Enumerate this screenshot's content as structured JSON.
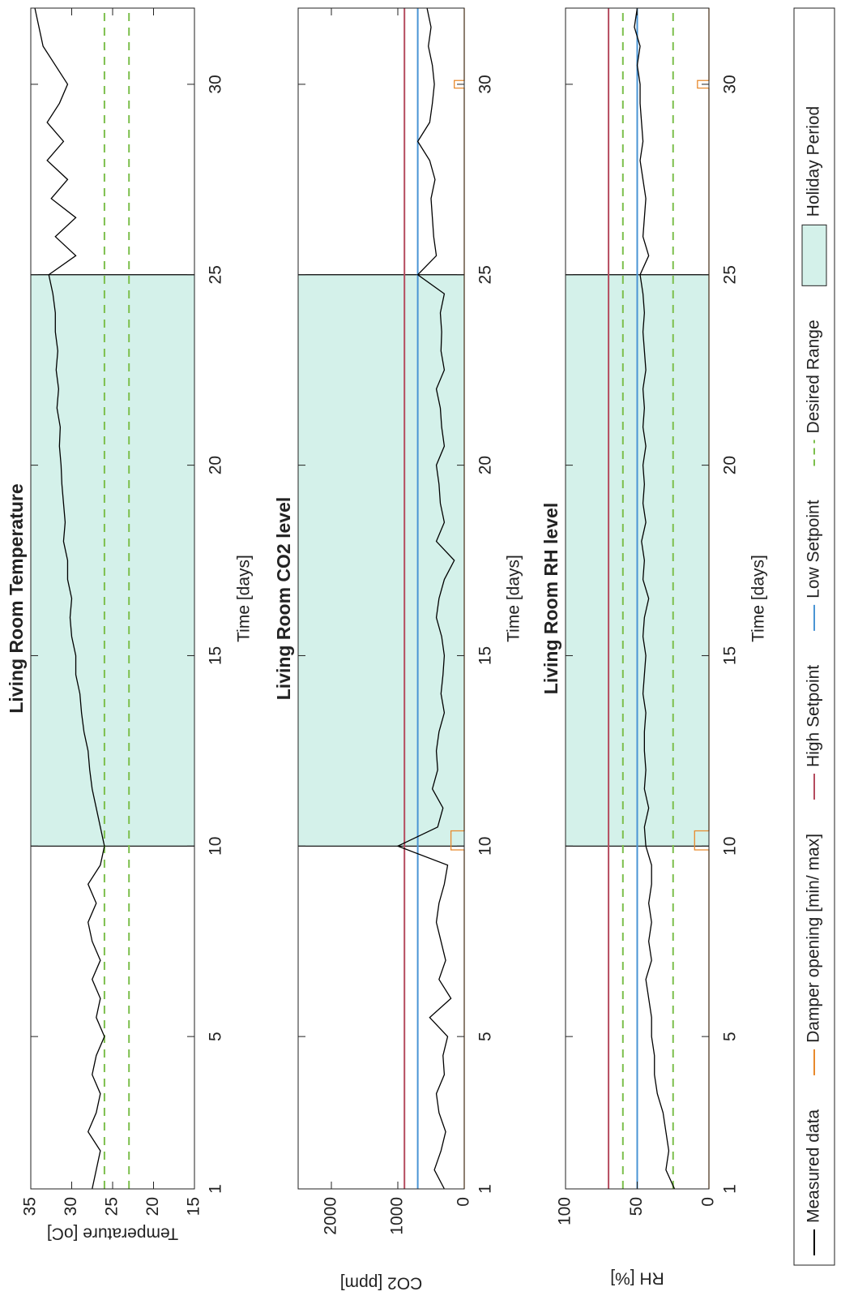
{
  "chart_data": [
    {
      "type": "line",
      "title": "Living Room Temperature",
      "xlabel": "Time [days]",
      "ylabel": "Temperature [oC]",
      "xlim": [
        1,
        32
      ],
      "xticks": [
        1,
        5,
        10,
        15,
        20,
        25,
        30
      ],
      "ylim": [
        15,
        35
      ],
      "yticks": [
        15,
        20,
        25,
        30,
        35
      ],
      "shade": {
        "x": [
          10,
          25
        ],
        "color": "#d4f1ea"
      },
      "hlines": [
        {
          "value": 26,
          "color": "#7cbf4c",
          "dashed": true
        },
        {
          "value": 23,
          "color": "#7cbf4c",
          "dashed": true
        }
      ],
      "series": [
        {
          "color": "#000000",
          "x": [
            1,
            1.5,
            2,
            2.5,
            3,
            3.5,
            4,
            4.5,
            5,
            5.5,
            6,
            6.5,
            7,
            7.5,
            8,
            8.5,
            9,
            9.5,
            10,
            10.5,
            11,
            11.5,
            12,
            12.5,
            13,
            13.5,
            14,
            14.5,
            15,
            15.5,
            16,
            16.5,
            17,
            17.5,
            18,
            18.5,
            19,
            19.5,
            20,
            20.5,
            21,
            21.5,
            22,
            22.5,
            23,
            23.5,
            24,
            24.5,
            25,
            25.5,
            26,
            26.5,
            27,
            27.5,
            28,
            28.5,
            29,
            29.5,
            30,
            30.5,
            31,
            31.5,
            32
          ],
          "values": [
            27.5,
            27,
            26.5,
            28,
            27,
            26.5,
            27.5,
            27,
            26,
            27,
            26.5,
            27.5,
            26.5,
            27.5,
            28,
            27,
            28,
            26.5,
            26,
            26.5,
            27,
            27.5,
            27.8,
            28,
            28.5,
            28.8,
            29,
            29.5,
            29.5,
            30,
            30.2,
            30,
            30.5,
            30.5,
            31,
            30.8,
            31,
            31.2,
            31.3,
            31.5,
            31.4,
            31.8,
            31.6,
            31.9,
            31.7,
            32,
            32,
            32.3,
            32.8,
            29.5,
            32,
            29.5,
            32.5,
            30.5,
            33,
            31,
            33,
            31.5,
            30.5,
            32,
            33.5,
            34,
            34.5
          ]
        }
      ]
    },
    {
      "type": "line",
      "title": "Living Room CO2 level",
      "xlabel": "Time [days]",
      "ylabel": "CO2 [ppm]",
      "xlim": [
        1,
        32
      ],
      "xticks": [
        1,
        5,
        10,
        15,
        20,
        25,
        30
      ],
      "ylim": [
        0,
        2500
      ],
      "yticks": [
        0,
        1000,
        2000
      ],
      "shade": {
        "x": [
          10,
          25
        ],
        "color": "#d4f1ea"
      },
      "hlines": [
        {
          "value": 900,
          "color": "#b44b5e",
          "dashed": false
        },
        {
          "value": 700,
          "color": "#4a94d4",
          "dashed": false
        }
      ],
      "series": [
        {
          "color": "#000000",
          "x": [
            1,
            1.5,
            2,
            2.5,
            3,
            3.5,
            4,
            4.5,
            5,
            5.5,
            6,
            6.5,
            7,
            7.5,
            8,
            8.5,
            9,
            9.5,
            10,
            10.5,
            11,
            11.5,
            12,
            12.5,
            13,
            13.5,
            14,
            14.5,
            15,
            15.5,
            16,
            16.5,
            17,
            17.5,
            18,
            18.5,
            19,
            19.5,
            20,
            20.5,
            21,
            21.5,
            22,
            22.5,
            23,
            23.5,
            24,
            24.5,
            25,
            25.5,
            26,
            26.5,
            27,
            27.5,
            28,
            28.5,
            29,
            29.5,
            30,
            30.5,
            31,
            31.5,
            32
          ],
          "values": [
            300,
            450,
            350,
            280,
            380,
            420,
            300,
            320,
            250,
            520,
            200,
            380,
            280,
            350,
            420,
            380,
            300,
            250,
            1000,
            400,
            320,
            480,
            400,
            420,
            380,
            300,
            350,
            320,
            300,
            340,
            420,
            380,
            300,
            150,
            420,
            300,
            360,
            380,
            420,
            300,
            340,
            360,
            420,
            300,
            350,
            340,
            360,
            300,
            700,
            420,
            460,
            480,
            500,
            440,
            520,
            700,
            520,
            480,
            450,
            480,
            540,
            500,
            560
          ]
        },
        {
          "color": "#e8892c",
          "x": [
            1,
            9.9,
            9.9,
            10.4,
            10.4,
            29.9,
            29.9,
            30.1,
            30.1,
            32
          ],
          "values": [
            0,
            0,
            200,
            200,
            0,
            0,
            150,
            150,
            0,
            0
          ]
        }
      ]
    },
    {
      "type": "line",
      "title": "Living Room RH level",
      "xlabel": "Time [days]",
      "ylabel": "RH [%]",
      "xlim": [
        1,
        32
      ],
      "xticks": [
        1,
        5,
        10,
        15,
        20,
        25,
        30
      ],
      "ylim": [
        0,
        100
      ],
      "yticks": [
        0,
        50,
        100
      ],
      "shade": {
        "x": [
          10,
          25
        ],
        "color": "#d4f1ea"
      },
      "hlines": [
        {
          "value": 70,
          "color": "#b44b5e",
          "dashed": false
        },
        {
          "value": 50,
          "color": "#4a94d4",
          "dashed": false
        },
        {
          "value": 60,
          "color": "#7cbf4c",
          "dashed": true
        },
        {
          "value": 25,
          "color": "#7cbf4c",
          "dashed": true
        }
      ],
      "series": [
        {
          "color": "#000000",
          "x": [
            1,
            1.5,
            2,
            2.5,
            3,
            3.5,
            4,
            4.5,
            5,
            5.5,
            6,
            6.5,
            7,
            7.5,
            8,
            8.5,
            9,
            9.5,
            10,
            10.5,
            11,
            11.5,
            12,
            12.5,
            13,
            13.5,
            14,
            14.5,
            15,
            15.5,
            16,
            16.5,
            17,
            17.5,
            18,
            18.5,
            19,
            19.5,
            20,
            20.5,
            21,
            21.5,
            22,
            22.5,
            23,
            23.5,
            24,
            24.5,
            25,
            25.5,
            26,
            26.5,
            27,
            27.5,
            28,
            28.5,
            29,
            29.5,
            30,
            30.5,
            31,
            31.5,
            32
          ],
          "values": [
            24,
            30,
            28,
            30,
            32,
            36,
            38,
            38,
            40,
            40,
            42,
            44,
            40,
            42,
            40,
            42,
            40,
            40,
            44,
            45,
            42,
            45,
            44,
            45,
            45,
            44,
            46,
            45,
            44,
            46,
            45,
            42,
            46,
            45,
            47,
            44,
            46,
            45,
            46,
            44,
            46,
            45,
            46,
            44,
            45,
            46,
            45,
            46,
            48,
            42,
            46,
            45,
            44,
            46,
            48,
            46,
            47,
            48,
            48,
            50,
            48,
            52,
            50
          ]
        },
        {
          "color": "#e8892c",
          "x": [
            1,
            9.9,
            9.9,
            10.4,
            10.4,
            29.9,
            29.9,
            30.1,
            30.1,
            32
          ],
          "values": [
            0,
            0,
            10,
            10,
            0,
            0,
            8,
            8,
            0,
            0
          ]
        }
      ]
    }
  ],
  "legend": [
    {
      "name": "Measured data",
      "color": "#000000",
      "style": "line"
    },
    {
      "name": "Damper opening [min/ max]",
      "color": "#e8892c",
      "style": "line"
    },
    {
      "name": "High Setpoint",
      "color": "#b44b5e",
      "style": "line"
    },
    {
      "name": "Low Setpoint",
      "color": "#4a94d4",
      "style": "line"
    },
    {
      "name": "Desired Range",
      "color": "#7cbf4c",
      "style": "dashed"
    },
    {
      "name": "Holiday Period",
      "color": "#d4f1ea",
      "style": "patch"
    }
  ]
}
